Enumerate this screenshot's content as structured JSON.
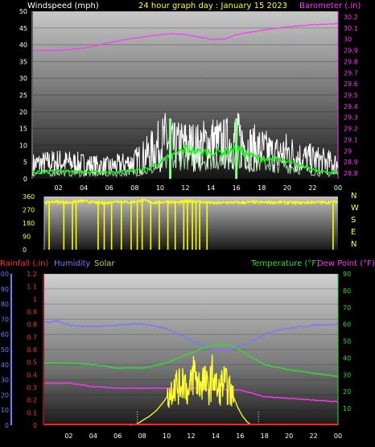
{
  "header": {
    "left_label": "Windspeed (mph)",
    "title": "24 hour graph day : January 15 2023",
    "right_label": "Barometer (.in)"
  },
  "colors": {
    "background": "#000000",
    "wind": "#ffffff",
    "gust": "#00ff00",
    "barometer": "#ff33ff",
    "direction": "#ffff00",
    "humidity": "#7777ff",
    "temperature": "#33dd33",
    "dewpoint": "#ff33ff",
    "solar": "#ffff33",
    "rainfall": "#ff2222"
  },
  "chart_data": [
    {
      "type": "line",
      "title": "24 hour graph day : January 15 2023",
      "xlabel": "",
      "x_ticks": [
        "02",
        "04",
        "06",
        "08",
        "10",
        "12",
        "14",
        "16",
        "18",
        "20",
        "22",
        "00"
      ],
      "yleft": {
        "label": "Windspeed (mph)",
        "ticks": [
          0,
          5,
          10,
          15,
          20,
          25,
          30,
          35,
          40,
          45,
          50
        ],
        "lim": [
          0,
          50
        ]
      },
      "yright": {
        "label": "Barometer (.in)",
        "ticks": [
          "28.8",
          "28.9",
          "29",
          "29.1",
          "29.2",
          "29.3",
          "29.4",
          "29.5",
          "29.6",
          "29.7",
          "29.8",
          "29.9",
          "30",
          "30.1",
          "30.2"
        ],
        "lim": [
          28.75,
          30.25
        ]
      },
      "series": [
        {
          "name": "Barometer (.in)",
          "axis": "right",
          "x": [
            0,
            2,
            4,
            6,
            8,
            10,
            11,
            12,
            13,
            14,
            15,
            16,
            18,
            20,
            22,
            24
          ],
          "values": [
            29.9,
            29.9,
            29.92,
            29.97,
            30.01,
            30.04,
            30.05,
            30.04,
            30.02,
            30.0,
            30.0,
            30.04,
            30.08,
            30.11,
            30.13,
            30.14
          ]
        },
        {
          "axis": "left",
          "x": [
            0,
            2,
            4,
            6,
            8,
            9,
            10,
            10.5,
            11,
            12,
            13,
            14,
            15,
            16,
            17,
            18,
            19,
            20,
            21,
            22,
            23,
            24
          ],
          "values": [
            6,
            7,
            6,
            5,
            7,
            10,
            14,
            16,
            13,
            14,
            13,
            15,
            14,
            16,
            13,
            12,
            10,
            11,
            9,
            8,
            7,
            6
          ]
        },
        {
          "axis": "left",
          "x": [
            0,
            2,
            4,
            6,
            8,
            9,
            10,
            11,
            12,
            13,
            14,
            15,
            16,
            17,
            18,
            19,
            20,
            21,
            22,
            23,
            24
          ],
          "values": [
            2,
            2.5,
            2,
            2,
            2.5,
            3,
            5,
            7,
            9,
            8,
            8,
            8,
            9,
            7,
            6,
            6,
            5,
            4,
            3,
            2,
            2
          ]
        }
      ]
    },
    {
      "type": "scatter",
      "x_ticks": [
        "02",
        "04",
        "06",
        "08",
        "10",
        "12",
        "14",
        "16",
        "18",
        "20",
        "22",
        "00"
      ],
      "y_ticks": [
        0,
        90,
        180,
        270,
        360
      ],
      "ylim": [
        0,
        360
      ],
      "right_labels": [
        "N",
        "W",
        "S",
        "E",
        "N"
      ],
      "values_note": "",
      "x": [
        0,
        1,
        2,
        3,
        4,
        5,
        6,
        7,
        8,
        9,
        10,
        11,
        12,
        13,
        14,
        15,
        16,
        17,
        18,
        19,
        20,
        21,
        22,
        23,
        24
      ],
      "values": [
        320,
        325,
        318,
        330,
        322,
        315,
        328,
        320,
        335,
        318,
        325,
        320,
        330,
        322,
        315,
        320,
        318,
        322,
        320,
        322,
        320,
        318,
        322,
        320,
        325
      ]
    },
    {
      "type": "line",
      "x_ticks": [
        "02",
        "04",
        "06",
        "08",
        "10",
        "12",
        "14",
        "16",
        "18",
        "20",
        "22",
        "00"
      ],
      "yleft_outer": {
        "label": "Humidity",
        "ticks": [
          0,
          10,
          20,
          30,
          40,
          50,
          60,
          70,
          80,
          90,
          100
        ],
        "lim": [
          0,
          100
        ]
      },
      "yleft_inner": {
        "label": "Rainfall (.in)",
        "ticks": [
          "0",
          "0.1",
          "0.2",
          "0.3",
          "0.4",
          "0.5",
          "0.6",
          "0.7",
          "0.8",
          "0.9",
          "1",
          "1.1",
          "1.2"
        ],
        "lim": [
          0,
          1.2
        ]
      },
      "yright": {
        "label": "Temperature (°F)",
        "ticks": [
          10,
          20,
          30,
          40,
          50,
          60,
          70,
          80,
          90
        ],
        "lim": [
          0,
          90
        ]
      },
      "legend": [
        "Rainfall (.in)",
        "Humidity",
        "Solar",
        "Temperature (°F)",
        "Dew Point (°F)"
      ],
      "series": [
        {
          "name": "Humidity",
          "axis": "outer",
          "x": [
            0,
            1,
            2,
            4,
            6,
            8,
            10,
            12,
            13,
            14,
            14.5,
            15,
            16,
            17,
            18,
            19,
            20,
            22,
            24
          ],
          "values": [
            68,
            69,
            66,
            65,
            66,
            67,
            64,
            56,
            53,
            50,
            49,
            50,
            52,
            56,
            60,
            63,
            64,
            66,
            67
          ]
        },
        {
          "name": "Temperature (°F)",
          "axis": "right",
          "x": [
            0,
            2,
            4,
            6,
            8,
            10,
            12,
            13,
            14,
            15,
            16,
            17,
            18,
            20,
            22,
            24
          ],
          "values": [
            37,
            37,
            36,
            34,
            34,
            37,
            43,
            46,
            48,
            48,
            45,
            40,
            36,
            33,
            31,
            29
          ]
        },
        {
          "name": "Dew Point (°F)",
          "axis": "right",
          "x": [
            0,
            2,
            4,
            6,
            8,
            10,
            12,
            14,
            16,
            17,
            18,
            20,
            22,
            24
          ],
          "values": [
            25,
            25,
            23,
            22,
            22,
            22,
            22,
            21,
            21,
            19,
            17,
            16,
            15,
            14
          ]
        },
        {
          "name": "Solar",
          "axis": "outer",
          "x": [
            7,
            7.6,
            8,
            8.6,
            9.2,
            9.8,
            10.3,
            10.6,
            11,
            11.4,
            11.8,
            12.2,
            12.6,
            13,
            13.4,
            13.8,
            14.2,
            14.6,
            15,
            15.4,
            15.8,
            16.2,
            16.6,
            17
          ],
          "values": [
            0,
            1,
            3,
            6,
            10,
            16,
            22,
            30,
            26,
            34,
            20,
            38,
            28,
            32,
            24,
            36,
            22,
            30,
            26,
            20,
            12,
            6,
            2,
            0
          ]
        },
        {
          "name": "Rainfall (.in)",
          "axis": "inner",
          "x": [
            0,
            24
          ],
          "values": [
            0,
            0
          ]
        }
      ]
    }
  ]
}
